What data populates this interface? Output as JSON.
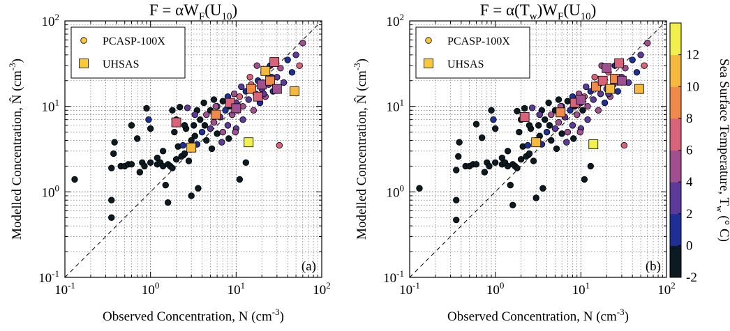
{
  "chart_data": [
    {
      "panel": "(a)",
      "type": "scatter",
      "title": {
        "base": "F = αW",
        "sub1": "F",
        "mid": "(U",
        "sub2": "10",
        "end": ")"
      },
      "xlabel": "Observed Concentration, N (cm",
      "xlabel_sup": "-3",
      "xlabel_end": ")",
      "ylabel": "Modelled Concentration, N̂ (cm",
      "ylabel_sup": "-3",
      "ylabel_end": ")",
      "xscale": "log",
      "yscale": "log",
      "xlim": [
        0.1,
        100
      ],
      "ylim": [
        0.1,
        100
      ],
      "grid": true,
      "reference_line": "1:1 dashed",
      "legend_position": "top-left",
      "legend": [
        {
          "marker": "circle",
          "label": "PCASP-100X",
          "color": "#f9c93a"
        },
        {
          "marker": "square",
          "label": "UHSAS",
          "color": "#f9c93a"
        }
      ],
      "series": [
        {
          "name": "PCASP-100X",
          "marker": "circle",
          "points": [
            [
              0.13,
              1.4
            ],
            [
              0.35,
              0.5
            ],
            [
              0.35,
              0.8
            ],
            [
              0.35,
              1.9
            ],
            [
              0.37,
              2.8
            ],
            [
              0.38,
              3.8
            ],
            [
              0.45,
              2.0
            ],
            [
              0.5,
              2.0
            ],
            [
              0.55,
              2.1
            ],
            [
              0.6,
              2.1
            ],
            [
              0.6,
              6.0
            ],
            [
              0.7,
              4.2
            ],
            [
              0.75,
              1.7
            ],
            [
              0.8,
              2.2
            ],
            [
              0.85,
              2.0
            ],
            [
              0.9,
              9.5
            ],
            [
              0.95,
              7.0
            ],
            [
              1.0,
              2.2
            ],
            [
              1.0,
              5.5
            ],
            [
              1.2,
              2.1
            ],
            [
              1.3,
              2.2
            ],
            [
              1.4,
              2.0
            ],
            [
              1.5,
              1.2
            ],
            [
              1.6,
              0.75
            ],
            [
              1.6,
              2.1
            ],
            [
              1.7,
              2.0
            ],
            [
              1.8,
              1.9
            ],
            [
              1.8,
              9.0
            ],
            [
              1.9,
              5.0
            ],
            [
              2.0,
              2.4
            ],
            [
              2.1,
              3.4
            ],
            [
              2.2,
              9.8
            ],
            [
              2.3,
              2.6
            ],
            [
              2.4,
              3.5
            ],
            [
              2.5,
              2.8
            ],
            [
              2.6,
              5.5
            ],
            [
              2.7,
              9.6
            ],
            [
              2.8,
              2.3
            ],
            [
              3.0,
              4.0
            ],
            [
              3.0,
              0.9
            ],
            [
              3.2,
              6.0
            ],
            [
              3.3,
              4.5
            ],
            [
              3.5,
              9.0
            ],
            [
              3.5,
              3.6
            ],
            [
              3.6,
              1.1
            ],
            [
              3.8,
              7.0
            ],
            [
              4.0,
              5.0
            ],
            [
              4.2,
              11.0
            ],
            [
              4.5,
              8.0
            ],
            [
              4.5,
              4.0
            ],
            [
              5.0,
              9.0
            ],
            [
              5.0,
              5.5
            ],
            [
              5.5,
              12.0
            ],
            [
              5.5,
              6.5
            ],
            [
              6.0,
              10.0
            ],
            [
              6.0,
              4.8
            ],
            [
              6.5,
              7.5
            ],
            [
              7.0,
              11.5
            ],
            [
              7.0,
              5.0
            ],
            [
              7.5,
              9.0
            ],
            [
              8.0,
              13.0
            ],
            [
              8.0,
              6.0
            ],
            [
              8.5,
              10.0
            ],
            [
              9.0,
              8.0
            ],
            [
              9.5,
              14.0
            ],
            [
              10.0,
              11.0
            ],
            [
              10.0,
              5.5
            ],
            [
              10.5,
              9.0
            ],
            [
              11.0,
              1.4
            ],
            [
              11.0,
              13.0
            ],
            [
              12.0,
              10.0
            ],
            [
              12.0,
              7.0
            ],
            [
              13.0,
              2.2
            ],
            [
              13.0,
              15.0
            ],
            [
              14.0,
              12.0
            ],
            [
              15.0,
              18.0
            ],
            [
              16.0,
              9.0
            ],
            [
              17.0,
              14.0
            ],
            [
              18.0,
              20.0
            ],
            [
              19.0,
              11.0
            ],
            [
              20.0,
              16.0
            ],
            [
              21.0,
              25.0
            ],
            [
              22.0,
              13.0
            ],
            [
              24.0,
              18.0
            ],
            [
              25.0,
              30.0
            ],
            [
              27.0,
              15.0
            ],
            [
              30.0,
              22.0
            ],
            [
              32.0,
              3.5
            ],
            [
              33.0,
              28.0
            ],
            [
              36.0,
              19.0
            ],
            [
              40.0,
              35.0
            ],
            [
              45.0,
              25.0
            ],
            [
              50.0,
              40.0
            ],
            [
              55.0,
              30.0
            ],
            [
              60.0,
              55.0
            ],
            [
              5.2,
              3.2
            ],
            [
              6.8,
              3.8
            ],
            [
              8.2,
              4.2
            ],
            [
              9.8,
              5.0
            ],
            [
              2.0,
              7.0
            ],
            [
              2.5,
              6.0
            ],
            [
              3.3,
              8.0
            ],
            [
              4.3,
              6.0
            ],
            [
              5.8,
              10.0
            ],
            [
              11.5,
              17.0
            ],
            [
              14.5,
              22.0
            ],
            [
              17.5,
              30.0
            ],
            [
              21.0,
              14.0
            ],
            [
              26.0,
              22.0
            ],
            [
              1.2,
              2.5
            ],
            [
              1.4,
              3.0
            ]
          ]
        },
        {
          "name": "UHSAS",
          "marker": "square",
          "points": [
            [
              2.0,
              6.5
            ],
            [
              3.0,
              3.3
            ],
            [
              5.8,
              8.0
            ],
            [
              8.5,
              11.0
            ],
            [
              10.0,
              9.5
            ],
            [
              14.0,
              3.8
            ],
            [
              15.0,
              16.0
            ],
            [
              18.0,
              13.0
            ],
            [
              20.0,
              18.0
            ],
            [
              22.0,
              26.0
            ],
            [
              25.0,
              20.0
            ],
            [
              28.0,
              33.0
            ],
            [
              30.0,
              16.0
            ],
            [
              48.0,
              15.0
            ]
          ]
        }
      ]
    },
    {
      "panel": "(b)",
      "type": "scatter",
      "title": {
        "base": "F = α(T",
        "sub1": "w",
        "mid": ")W",
        "sub2": "F",
        "end": "(U",
        "sub3": "10",
        "end2": ")"
      },
      "xlabel": "Observed Concentration, N (cm",
      "xlabel_sup": "-3",
      "xlabel_end": ")",
      "ylabel": "Modelled Concentration, N̂ (cm",
      "ylabel_sup": "-3",
      "ylabel_end": ")",
      "xscale": "log",
      "yscale": "log",
      "xlim": [
        0.1,
        100
      ],
      "ylim": [
        0.1,
        100
      ],
      "grid": true,
      "reference_line": "1:1 dashed",
      "legend_position": "top-left",
      "legend": [
        {
          "marker": "circle",
          "label": "PCASP-100X",
          "color": "#f9c93a"
        },
        {
          "marker": "square",
          "label": "UHSAS",
          "color": "#f9c93a"
        }
      ],
      "series": [
        {
          "name": "PCASP-100X",
          "marker": "circle",
          "points": [
            [
              0.13,
              1.1
            ],
            [
              0.35,
              0.47
            ],
            [
              0.35,
              0.8
            ],
            [
              0.35,
              1.8
            ],
            [
              0.37,
              2.6
            ],
            [
              0.38,
              3.8
            ],
            [
              0.45,
              2.0
            ],
            [
              0.5,
              2.0
            ],
            [
              0.55,
              2.1
            ],
            [
              0.6,
              2.1
            ],
            [
              0.6,
              6.2
            ],
            [
              0.7,
              4.3
            ],
            [
              0.75,
              1.7
            ],
            [
              0.8,
              2.2
            ],
            [
              0.85,
              2.0
            ],
            [
              0.9,
              9.0
            ],
            [
              0.95,
              7.0
            ],
            [
              1.0,
              2.2
            ],
            [
              1.0,
              5.5
            ],
            [
              1.2,
              2.1
            ],
            [
              1.3,
              2.2
            ],
            [
              1.4,
              2.0
            ],
            [
              1.5,
              1.2
            ],
            [
              1.6,
              0.7
            ],
            [
              1.6,
              2.1
            ],
            [
              1.7,
              2.0
            ],
            [
              1.8,
              1.9
            ],
            [
              1.8,
              8.8
            ],
            [
              1.9,
              5.0
            ],
            [
              2.0,
              2.4
            ],
            [
              2.1,
              3.4
            ],
            [
              2.2,
              9.5
            ],
            [
              2.3,
              2.6
            ],
            [
              2.4,
              3.5
            ],
            [
              2.5,
              2.8
            ],
            [
              2.6,
              5.5
            ],
            [
              2.7,
              9.6
            ],
            [
              2.8,
              2.3
            ],
            [
              3.0,
              4.0
            ],
            [
              3.0,
              0.85
            ],
            [
              3.2,
              6.0
            ],
            [
              3.3,
              4.5
            ],
            [
              3.5,
              9.0
            ],
            [
              3.5,
              3.6
            ],
            [
              3.6,
              1.1
            ],
            [
              3.8,
              7.0
            ],
            [
              4.0,
              5.0
            ],
            [
              4.2,
              11.0
            ],
            [
              4.5,
              8.0
            ],
            [
              4.5,
              4.0
            ],
            [
              5.0,
              9.0
            ],
            [
              5.0,
              5.5
            ],
            [
              5.5,
              12.0
            ],
            [
              5.5,
              6.5
            ],
            [
              6.0,
              10.0
            ],
            [
              6.0,
              4.8
            ],
            [
              6.5,
              7.5
            ],
            [
              7.0,
              11.5
            ],
            [
              7.0,
              5.0
            ],
            [
              7.5,
              9.0
            ],
            [
              8.0,
              13.0
            ],
            [
              8.0,
              6.0
            ],
            [
              8.5,
              10.0
            ],
            [
              9.0,
              8.0
            ],
            [
              9.5,
              14.0
            ],
            [
              10.0,
              11.0
            ],
            [
              10.0,
              5.5
            ],
            [
              10.5,
              9.0
            ],
            [
              11.0,
              1.4
            ],
            [
              11.0,
              13.0
            ],
            [
              12.0,
              10.0
            ],
            [
              12.0,
              7.0
            ],
            [
              13.0,
              2.0
            ],
            [
              13.0,
              15.0
            ],
            [
              14.0,
              12.0
            ],
            [
              15.0,
              18.0
            ],
            [
              16.0,
              9.0
            ],
            [
              17.0,
              14.0
            ],
            [
              18.0,
              20.0
            ],
            [
              19.0,
              11.0
            ],
            [
              20.0,
              16.0
            ],
            [
              21.0,
              25.0
            ],
            [
              22.0,
              13.0
            ],
            [
              24.0,
              18.0
            ],
            [
              25.0,
              30.0
            ],
            [
              27.0,
              15.0
            ],
            [
              30.0,
              22.0
            ],
            [
              32.0,
              3.5
            ],
            [
              33.0,
              28.0
            ],
            [
              36.0,
              19.0
            ],
            [
              40.0,
              35.0
            ],
            [
              45.0,
              25.0
            ],
            [
              50.0,
              40.0
            ],
            [
              55.0,
              30.0
            ],
            [
              60.0,
              55.0
            ],
            [
              5.2,
              3.2
            ],
            [
              6.8,
              3.8
            ],
            [
              8.2,
              4.2
            ],
            [
              9.8,
              5.0
            ],
            [
              2.0,
              7.0
            ],
            [
              2.5,
              6.0
            ],
            [
              3.3,
              8.0
            ],
            [
              4.3,
              6.0
            ],
            [
              5.8,
              10.0
            ],
            [
              11.5,
              17.0
            ],
            [
              14.5,
              22.0
            ],
            [
              17.5,
              30.0
            ],
            [
              21.0,
              14.0
            ],
            [
              26.0,
              22.0
            ],
            [
              1.2,
              2.5
            ],
            [
              1.4,
              3.0
            ]
          ]
        },
        {
          "name": "UHSAS",
          "marker": "square",
          "points": [
            [
              2.2,
              7.5
            ],
            [
              3.0,
              3.8
            ],
            [
              5.8,
              8.5
            ],
            [
              8.5,
              11.0
            ],
            [
              10.0,
              12.0
            ],
            [
              14.0,
              3.6
            ],
            [
              15.0,
              17.0
            ],
            [
              18.0,
              20.0
            ],
            [
              20.0,
              28.0
            ],
            [
              22.0,
              16.0
            ],
            [
              25.0,
              21.0
            ],
            [
              28.0,
              32.0
            ],
            [
              30.0,
              20.0
            ],
            [
              48.0,
              16.0
            ]
          ]
        }
      ],
      "colorbar": {
        "label": "Sea Surface Temperature, T",
        "label_sub": "w",
        "label_end": " (° C)",
        "min": -2,
        "max": 12,
        "ticks": [
          "-2",
          "0",
          "2",
          "4",
          "6",
          "8",
          "10",
          "12"
        ],
        "colors": [
          "#0c1a22",
          "#1e2f96",
          "#5b3a9a",
          "#a0508f",
          "#d9637a",
          "#f08a4b",
          "#f5b940",
          "#f2f04c"
        ]
      }
    }
  ],
  "tick_labels": {
    "x": [
      "10",
      "10",
      "10",
      "10"
    ],
    "x_exp": [
      "-1",
      "0",
      "1",
      "2"
    ],
    "y": [
      "10",
      "10",
      "10",
      "10"
    ],
    "y_exp": [
      "-1",
      "0",
      "1",
      "2"
    ]
  }
}
